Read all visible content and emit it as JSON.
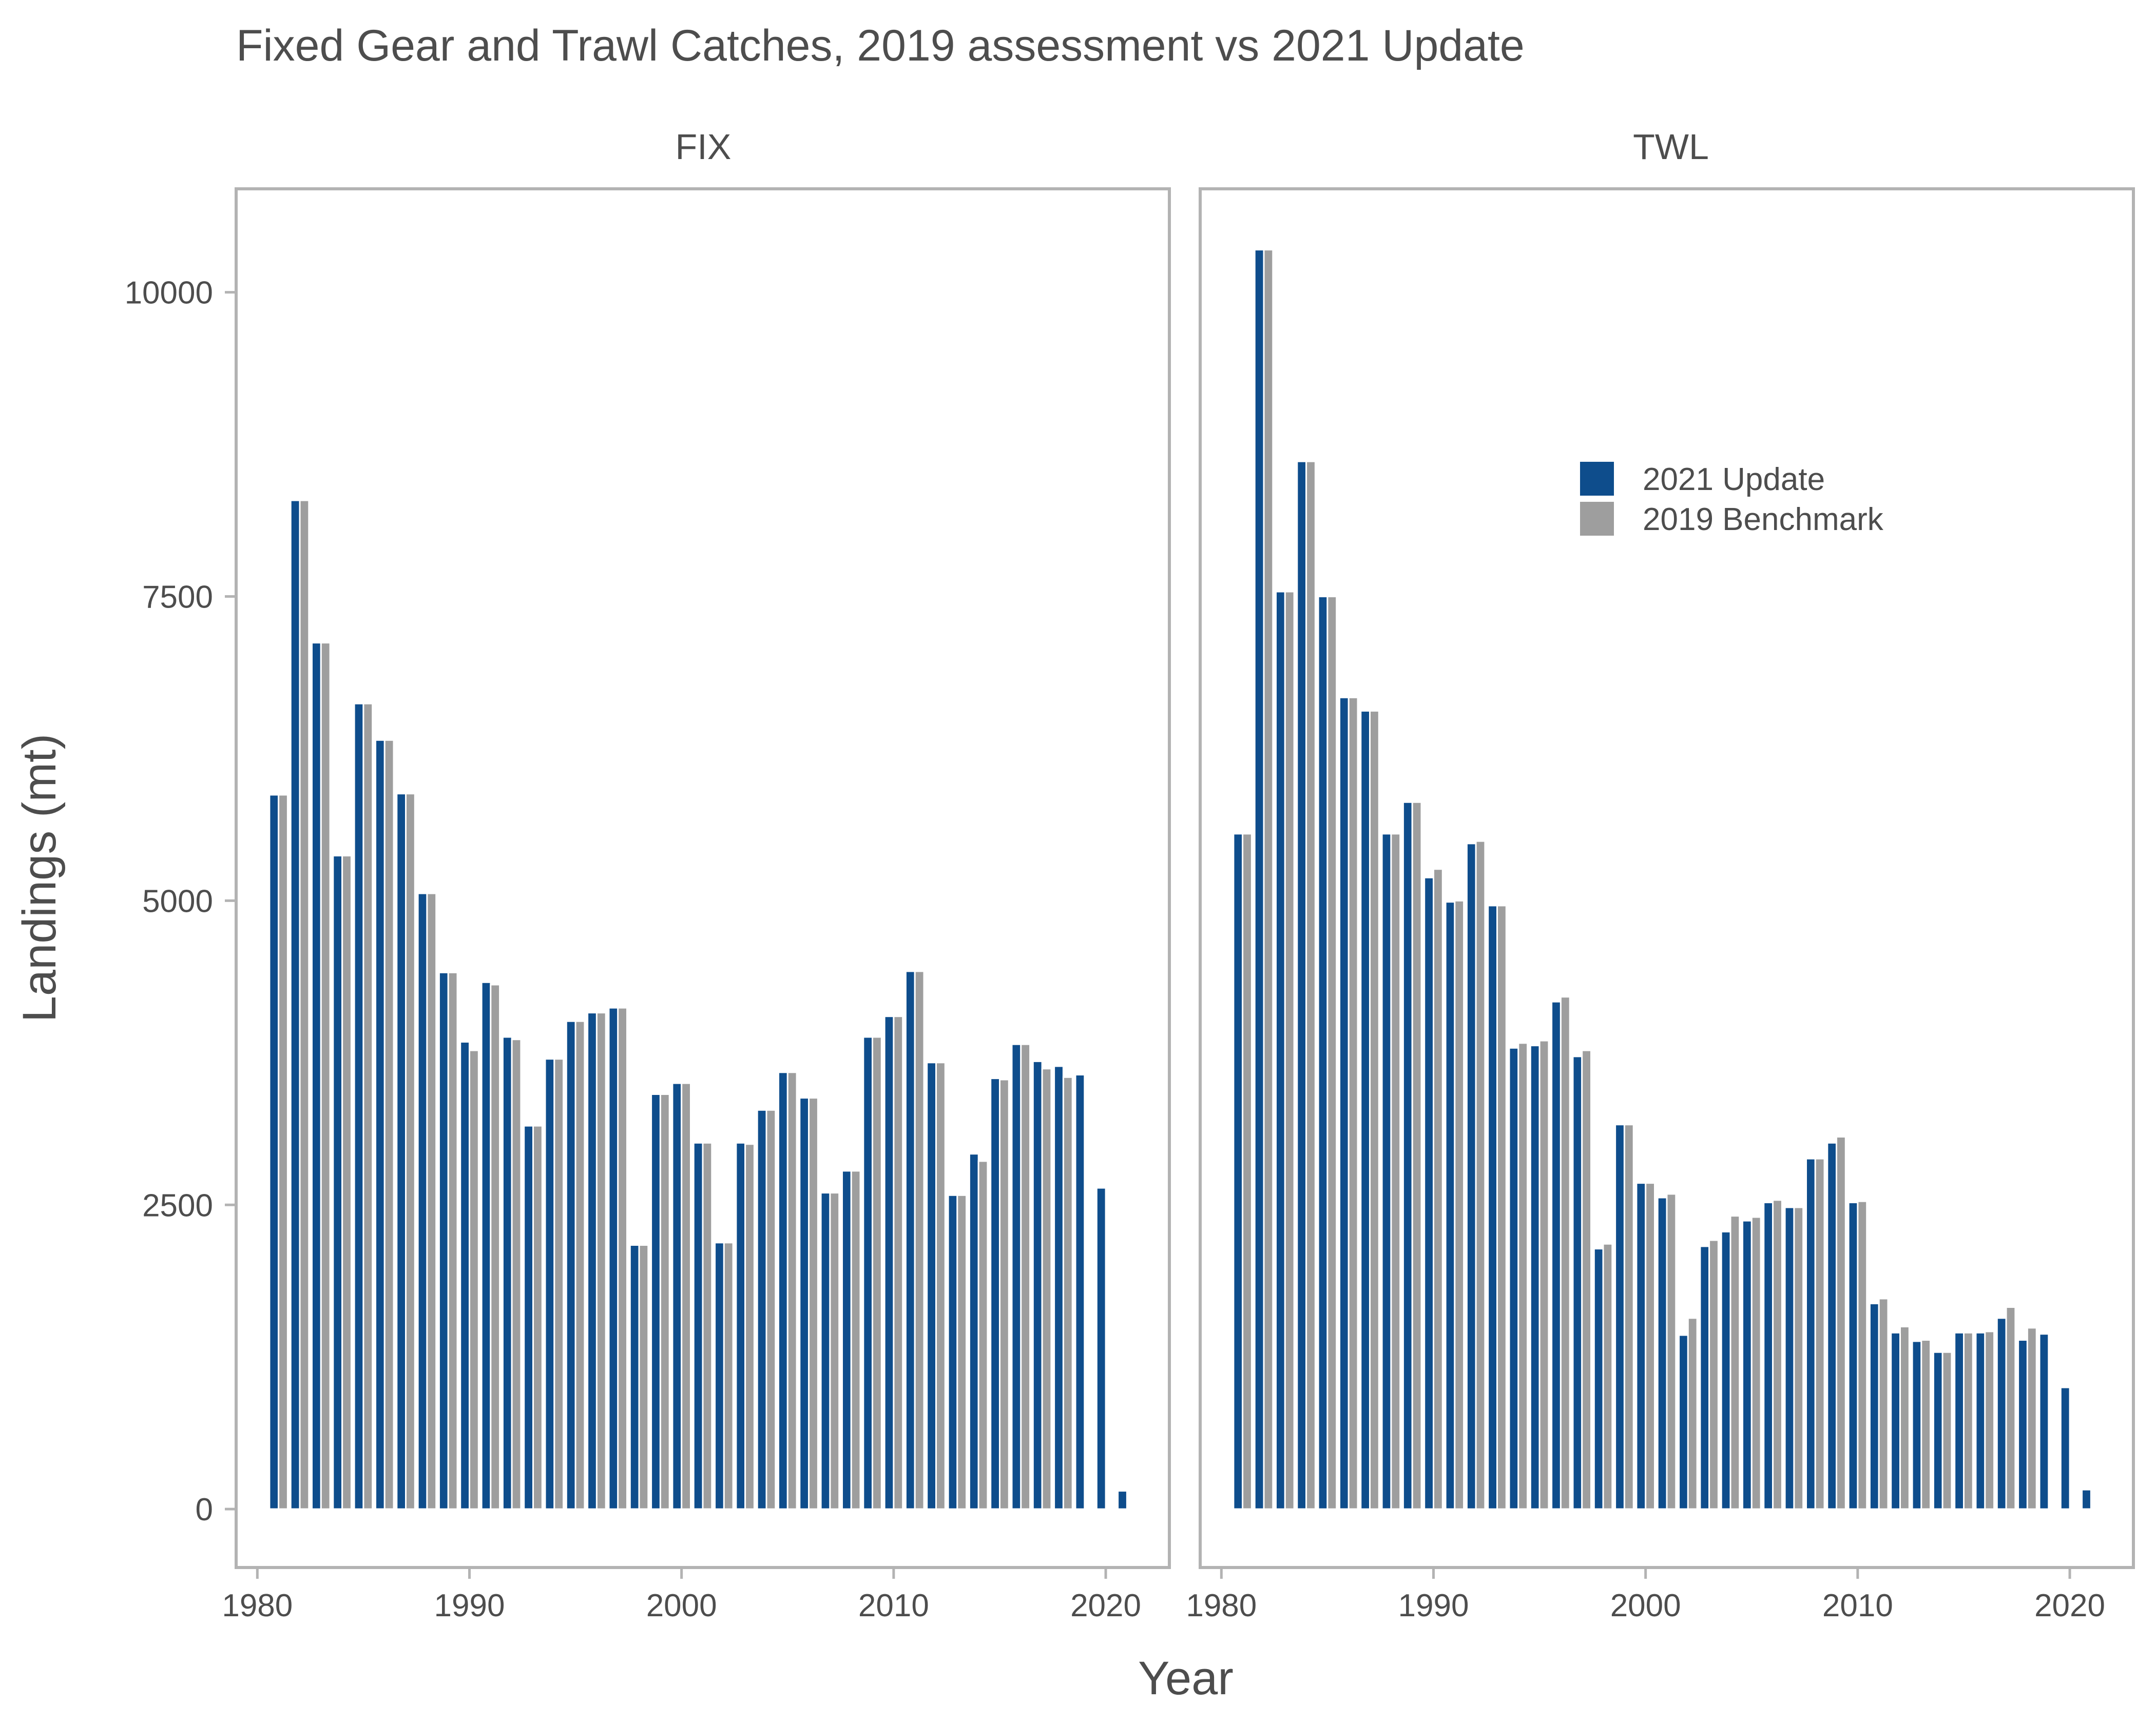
{
  "chart_data": {
    "type": "bar",
    "title": "Fixed Gear and Trawl Catches, 2019 assessment vs 2021 Update",
    "xlabel": "Year",
    "ylabel": "Landings (mt)",
    "x_ticks": [
      "1980",
      "1990",
      "2000",
      "2010",
      "2020"
    ],
    "y_ticks": [
      "0",
      "2500",
      "5000",
      "7500",
      "10000"
    ],
    "xlim": [
      1979,
      2023
    ],
    "ylim": [
      -480,
      10850
    ],
    "grid": false,
    "legend_position": "inside top-right of TWL panel",
    "legend": [
      {
        "label": "2021 Update",
        "color": "#0e4d8c"
      },
      {
        "label": "2019 Benchmark",
        "color": "#9e9e9e"
      }
    ],
    "years": [
      1981,
      1982,
      1983,
      1984,
      1985,
      1986,
      1987,
      1988,
      1989,
      1990,
      1991,
      1992,
      1993,
      1994,
      1995,
      1996,
      1997,
      1998,
      1999,
      2000,
      2001,
      2002,
      2003,
      2004,
      2005,
      2006,
      2007,
      2008,
      2009,
      2010,
      2011,
      2012,
      2013,
      2014,
      2015,
      2016,
      2017,
      2018,
      2019,
      2020,
      2021
    ],
    "panels": [
      {
        "name": "FIX",
        "series": [
          {
            "name": "2021 Update",
            "color": "#0e4d8c",
            "values": [
              5870,
              8290,
              7120,
              5370,
              6620,
              6320,
              5880,
              5060,
              4410,
              3840,
              4330,
              3880,
              3150,
              3700,
              4010,
              4080,
              4120,
              2170,
              3410,
              3500,
              3010,
              2190,
              3010,
              3280,
              3590,
              3380,
              2600,
              2780,
              3880,
              4050,
              4420,
              3670,
              2580,
              2920,
              3540,
              3820,
              3680,
              3640,
              3570,
              2640,
              150
            ]
          },
          {
            "name": "2019 Benchmark",
            "color": "#9e9e9e",
            "values": [
              5870,
              8290,
              7120,
              5370,
              6620,
              6320,
              5880,
              5060,
              4410,
              3770,
              4310,
              3860,
              3150,
              3700,
              4010,
              4080,
              4120,
              2170,
              3410,
              3500,
              3010,
              2190,
              3000,
              3280,
              3590,
              3380,
              2600,
              2780,
              3880,
              4050,
              4420,
              3670,
              2580,
              2860,
              3530,
              3820,
              3620,
              3550,
              null,
              null,
              null
            ]
          }
        ]
      },
      {
        "name": "TWL",
        "series": [
          {
            "name": "2021 Update",
            "color": "#0e4d8c",
            "values": [
              5550,
              10350,
              7540,
              8610,
              7500,
              6670,
              6560,
              5550,
              5810,
              5190,
              4990,
              5470,
              4960,
              3790,
              3810,
              4170,
              3720,
              2140,
              3160,
              2680,
              2560,
              1430,
              2160,
              2280,
              2370,
              2520,
              2480,
              2880,
              3010,
              2520,
              1690,
              1450,
              1380,
              1290,
              1450,
              1450,
              1570,
              1390,
              1440,
              1000,
              160
            ]
          },
          {
            "name": "2019 Benchmark",
            "color": "#9e9e9e",
            "values": [
              5550,
              10350,
              7540,
              8610,
              7500,
              6670,
              6560,
              5550,
              5810,
              5260,
              5000,
              5490,
              4960,
              3830,
              3850,
              4210,
              3770,
              2180,
              3160,
              2680,
              2590,
              1570,
              2210,
              2410,
              2400,
              2540,
              2480,
              2880,
              3060,
              2530,
              1730,
              1500,
              1390,
              1290,
              1450,
              1460,
              1660,
              1490,
              null,
              null,
              null
            ]
          }
        ]
      }
    ]
  }
}
